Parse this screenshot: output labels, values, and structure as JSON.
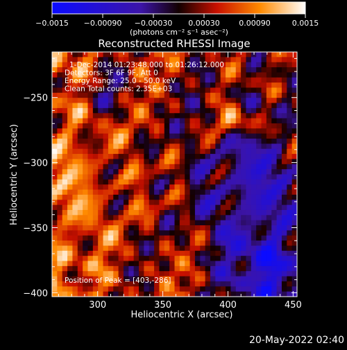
{
  "chart_data": {
    "type": "heatmap",
    "title": "Reconstructed RHESSI Image",
    "xlabel": "Heliocentric X (arcsec)",
    "ylabel": "Heliocentric Y (arcsec)",
    "xlim": [
      265,
      453
    ],
    "ylim": [
      -403,
      -215
    ],
    "x_ticks": [
      300,
      350,
      400,
      450
    ],
    "y_ticks": [
      -250,
      -300,
      -350,
      -400
    ],
    "x_tick_labels": [
      "300",
      "350",
      "400",
      "450"
    ],
    "y_tick_labels": [
      "−250",
      "−300",
      "−350",
      "−400"
    ],
    "colorbar": {
      "range": [
        -0.0015,
        0.0015
      ],
      "ticks": [
        -0.0015,
        -0.0009,
        -0.0003,
        0.0003,
        0.0009,
        0.0015
      ],
      "tick_labels": [
        "−0.0015",
        "−0.00090",
        "−0.00030",
        "0.00030",
        "0.00090",
        "0.0015"
      ],
      "unit_label": "(photons cm⁻² s⁻¹ asec⁻²)"
    },
    "annotations": [
      "1-Dec-2014 01:23:48.000 to 01:26:12.000",
      "Detectors: 3F 6F 9F, Att 0",
      "Energy Range: 25.0 - 50.0 keV",
      "Clean     Total counts: 2.35E+03"
    ],
    "peak_label": "Position of Peak = [403,-286]",
    "peak": [
      403,
      -286
    ],
    "grid": false
  },
  "footer": {
    "timestamp": "20-May-2022 02:40"
  }
}
